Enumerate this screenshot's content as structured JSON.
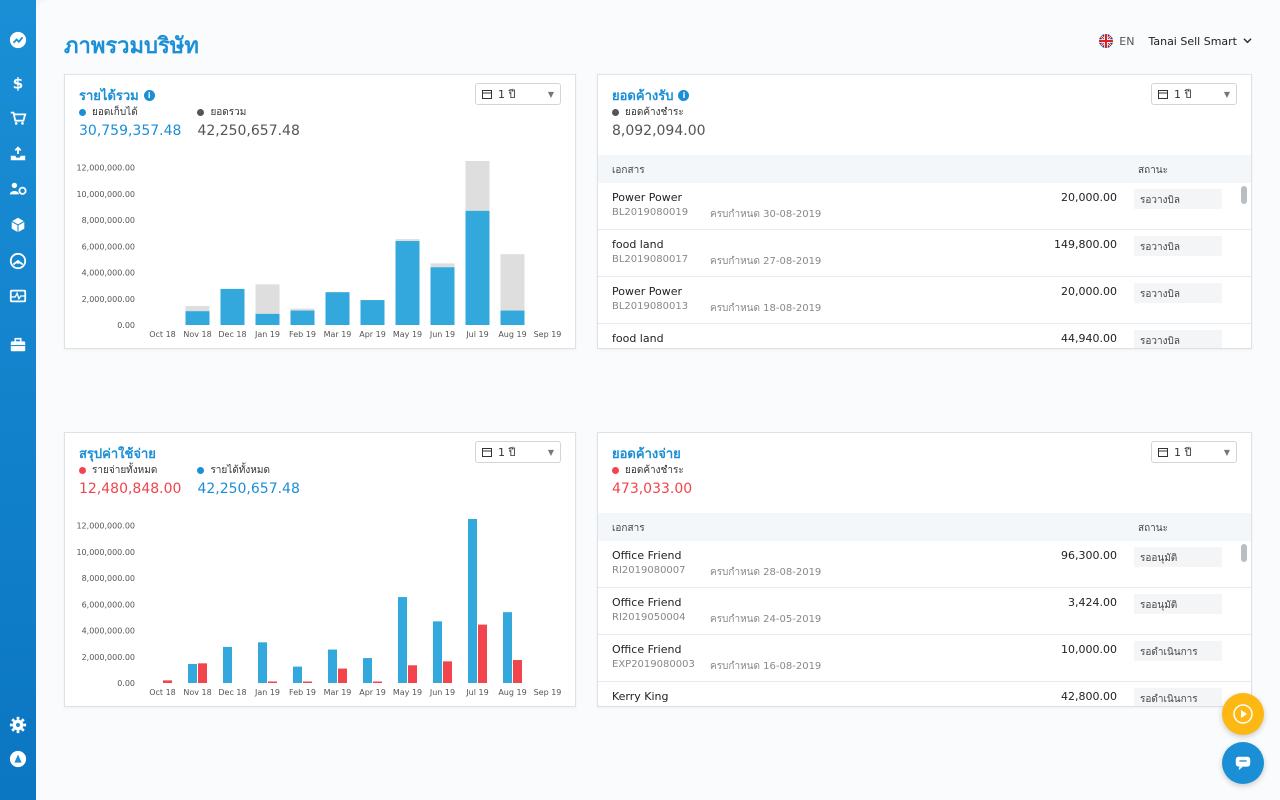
{
  "page": {
    "title": "ภาพรวมบริษัท"
  },
  "header": {
    "lang": "EN",
    "company": "Tanai Sell Smart"
  },
  "sidebar": {
    "items": [
      "dashboard",
      "sales",
      "purchase",
      "inventory-in",
      "contacts",
      "products",
      "reports",
      "payroll",
      "briefcase"
    ],
    "bottom": [
      "settings",
      "profile"
    ]
  },
  "colors": {
    "primary": "#1a8fd6",
    "bar_blue": "#33a8dd",
    "bar_gray": "#dedede",
    "bar_red": "#f2444c",
    "fab_yellow": "#fdb813"
  },
  "revenue": {
    "title": "รายได้รวม",
    "period": "1 ปี",
    "legend": [
      {
        "label": "ยอดเก็บได้",
        "value": "30,759,357.48",
        "color": "#1a8fd6"
      },
      {
        "label": "ยอดรวม",
        "value": "42,250,657.48",
        "color": "#555555"
      }
    ]
  },
  "receivable": {
    "title": "ยอดค้างรับ",
    "period": "1 ปี",
    "legend": [
      {
        "label": "ยอดค้างชำระ",
        "value": "8,092,094.00",
        "color": "#555555"
      }
    ],
    "columns": {
      "doc": "เอกสาร",
      "status": "สถานะ"
    },
    "rows": [
      {
        "name": "Power Power",
        "doc": "BL2019080019",
        "due": "ครบกำหนด 30-08-2019",
        "amount": "20,000.00",
        "status": "รอวางบิล"
      },
      {
        "name": "food land",
        "doc": "BL2019080017",
        "due": "ครบกำหนด 27-08-2019",
        "amount": "149,800.00",
        "status": "รอวางบิล"
      },
      {
        "name": "Power Power",
        "doc": "BL2019080013",
        "due": "ครบกำหนด 18-08-2019",
        "amount": "20,000.00",
        "status": "รอวางบิล"
      },
      {
        "name": "food land",
        "doc": "",
        "due": "",
        "amount": "44,940.00",
        "status": "รอวางบิล"
      }
    ]
  },
  "expense": {
    "title": "สรุปค่าใช้จ่าย",
    "period": "1 ปี",
    "legend": [
      {
        "label": "รายจ่ายทั้งหมด",
        "value": "12,480,848.00",
        "color": "#f2444c"
      },
      {
        "label": "รายได้ทั้งหมด",
        "value": "42,250,657.48",
        "color": "#1a8fd6"
      }
    ]
  },
  "payable": {
    "title": "ยอดค้างจ่าย",
    "period": "1 ปี",
    "legend": [
      {
        "label": "ยอดค้างชำระ",
        "value": "473,033.00",
        "color": "#f2444c"
      }
    ],
    "columns": {
      "doc": "เอกสาร",
      "status": "สถานะ"
    },
    "rows": [
      {
        "name": "Office Friend",
        "doc": "RI2019080007",
        "due": "ครบกำหนด 28-08-2019",
        "amount": "96,300.00",
        "status": "รออนุมัติ"
      },
      {
        "name": "Office Friend",
        "doc": "RI2019050004",
        "due": "ครบกำหนด 24-05-2019",
        "amount": "3,424.00",
        "status": "รออนุมัติ"
      },
      {
        "name": "Office Friend",
        "doc": "EXP2019080003",
        "due": "ครบกำหนด 16-08-2019",
        "amount": "10,000.00",
        "status": "รอดำเนินการ"
      },
      {
        "name": "Kerry King",
        "doc": "",
        "due": "",
        "amount": "42,800.00",
        "status": "รอดำเนินการ"
      }
    ]
  },
  "chart_data": [
    {
      "type": "bar",
      "categories": [
        "Oct 18",
        "Nov 18",
        "Dec 18",
        "Jan 19",
        "Feb 19",
        "Mar 19",
        "Apr 19",
        "May 19",
        "Jun 19",
        "Jul 19",
        "Aug 19",
        "Sep 19"
      ],
      "yticks": [
        "0.00",
        "2,000,000.00",
        "4,000,000.00",
        "6,000,000.00",
        "8,000,000.00",
        "10,000,000.00",
        "12,000,000.00"
      ],
      "ylim": [
        0,
        12500000
      ],
      "series": [
        {
          "name": "ยอดเก็บได้",
          "values": [
            0,
            1050000,
            2750000,
            850000,
            1100000,
            2500000,
            1900000,
            6400000,
            4400000,
            8700000,
            1100000,
            0
          ],
          "color": "#33a8dd"
        },
        {
          "name": "ยอดรวม",
          "values": [
            0,
            1450000,
            2750000,
            3100000,
            1250000,
            2500000,
            1900000,
            6550000,
            4700000,
            12500000,
            5400000,
            0
          ],
          "color": "#dedede"
        }
      ]
    },
    {
      "type": "bar",
      "categories": [
        "Oct 18",
        "Nov 18",
        "Dec 18",
        "Jan 19",
        "Feb 19",
        "Mar 19",
        "Apr 19",
        "May 19",
        "Jun 19",
        "Jul 19",
        "Aug 19",
        "Sep 19"
      ],
      "yticks": [
        "0.00",
        "2,000,000.00",
        "4,000,000.00",
        "6,000,000.00",
        "8,000,000.00",
        "10,000,000.00",
        "12,000,000.00"
      ],
      "ylim": [
        0,
        12500000
      ],
      "series": [
        {
          "name": "รายได้ทั้งหมด",
          "values": [
            0,
            1450000,
            2750000,
            3100000,
            1250000,
            2550000,
            1900000,
            6550000,
            4700000,
            12500000,
            5400000,
            0
          ],
          "color": "#33a8dd"
        },
        {
          "name": "รายจ่ายทั้งหมด",
          "values": [
            200000,
            1500000,
            0,
            50000,
            50000,
            1100000,
            100000,
            1350000,
            1650000,
            4450000,
            1750000,
            0
          ],
          "color": "#f2444c"
        }
      ]
    }
  ]
}
